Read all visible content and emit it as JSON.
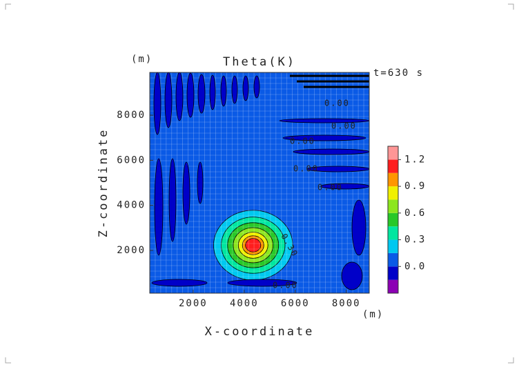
{
  "chart_data": {
    "type": "contour",
    "title": "Theta(K)",
    "subtitle": "t=630 s",
    "xlabel": "X-coordinate",
    "ylabel": "Z-coordinate",
    "xunit": "(m)",
    "yunit": "(m)",
    "xlim": [
      300,
      8900
    ],
    "ylim": [
      100,
      9900
    ],
    "xticks": [
      2000,
      4000,
      6000,
      8000
    ],
    "yticks": [
      2000,
      4000,
      6000,
      8000
    ],
    "grid": true,
    "levels": [
      -0.3,
      -0.15,
      0,
      0.15,
      0.3,
      0.45,
      0.6,
      0.75,
      0.9,
      1.05,
      1.2,
      1.35
    ],
    "colors": [
      "#8c00b4",
      "#0000c8",
      "#0a5ae6",
      "#00c8f0",
      "#00e6a0",
      "#28c828",
      "#8ce61e",
      "#f0f000",
      "#ff9600",
      "#ff1e1e",
      "#ff9696"
    ],
    "colorbar_ticks": [
      {
        "value": 0,
        "label": "0.0"
      },
      0.3,
      0.6,
      0.9,
      1.2
    ],
    "bubble": {
      "x": 4350,
      "z": 2230,
      "levels": [
        0.15,
        0.3,
        0.45,
        0.6,
        0.75,
        0.9,
        1.05
      ],
      "radii": [
        1550,
        1250,
        1000,
        780,
        580,
        420,
        300
      ]
    },
    "annotations": [
      "0.30",
      "0.00"
    ]
  }
}
